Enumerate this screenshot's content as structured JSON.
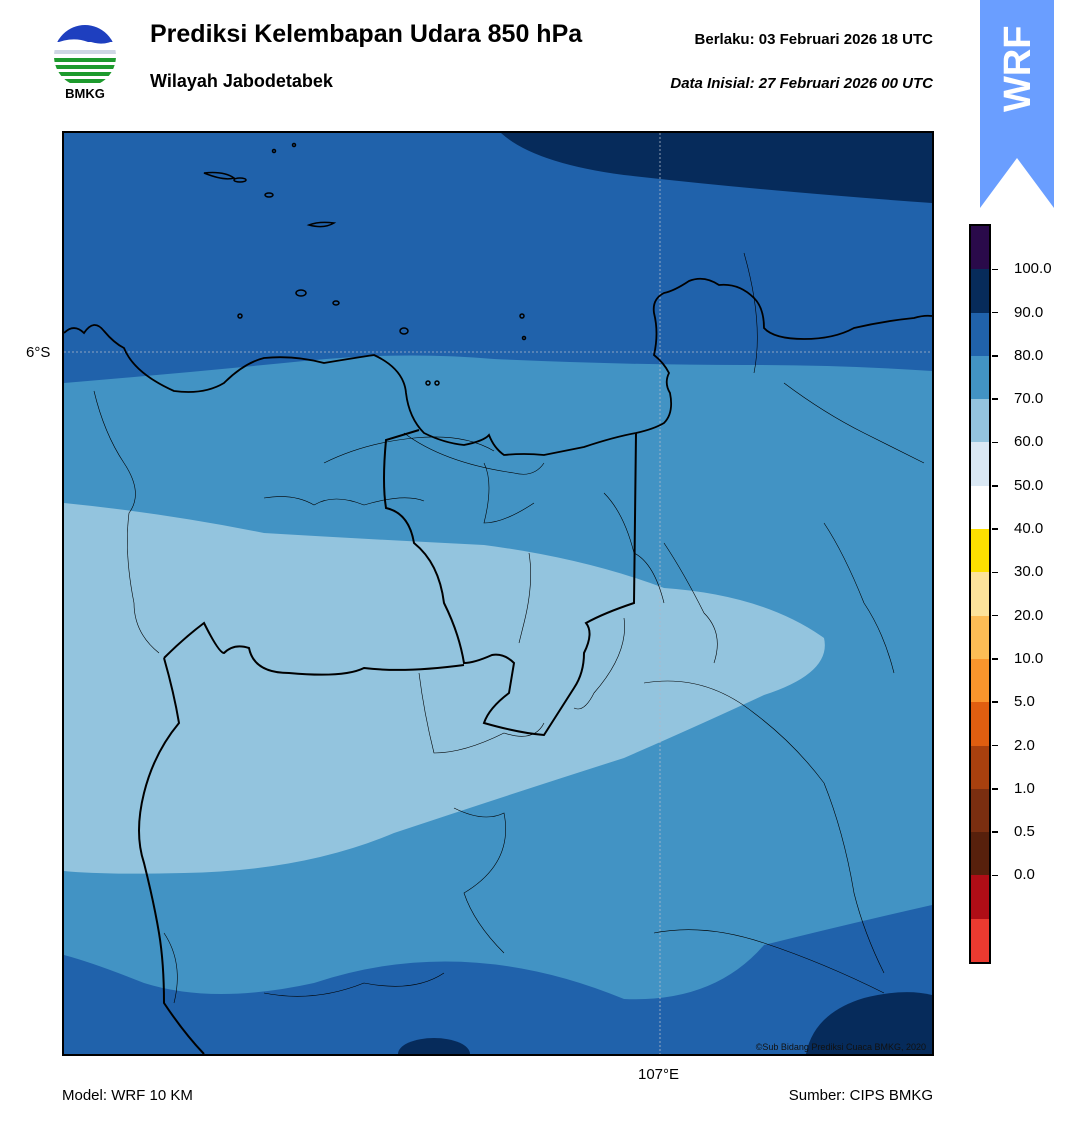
{
  "header": {
    "title": "Prediksi Kelembapan Udara 850 hPa",
    "subtitle": "Wilayah Jabodetabek",
    "valid_label": "Berlaku:  03 Februari 2026 18 UTC",
    "init_label": "Data Inisial:  27 Februari 2026 00 UTC"
  },
  "logo": {
    "text": "BMKG",
    "icon": "bmkg-logo-icon"
  },
  "banner": {
    "text": "WRF",
    "color": "#6a9eff"
  },
  "axes": {
    "lat_label": "6°S",
    "lon_label": "107°E"
  },
  "footer": {
    "model": "Model: WRF 10 KM",
    "source": "Sumber: CIPS BMKG",
    "credit": "©Sub Bidang Prediksi Cuaca BMKG, 2020"
  },
  "colorbar": {
    "labels": [
      "100.0",
      "90.0",
      "80.0",
      "70.0",
      "60.0",
      "50.0",
      "40.0",
      "30.0",
      "20.0",
      "10.0",
      "5.0",
      "2.0",
      "1.0",
      "0.5",
      "0.0"
    ],
    "colors": [
      "#2a0a4a",
      "#072b5a",
      "#2062ab",
      "#4293c4",
      "#93c4de",
      "#dae8f4",
      "#ffffff",
      "#fde000",
      "#fde39a",
      "#fdbd55",
      "#fa952c",
      "#e05e10",
      "#a8400e",
      "#7a2e10",
      "#57200c",
      "#b00d16",
      "#ea3a30"
    ]
  },
  "palette": {
    "dark": "#062b5b",
    "mid_dark": "#2062ab",
    "mid": "#4293c4",
    "light": "#93c4de"
  }
}
